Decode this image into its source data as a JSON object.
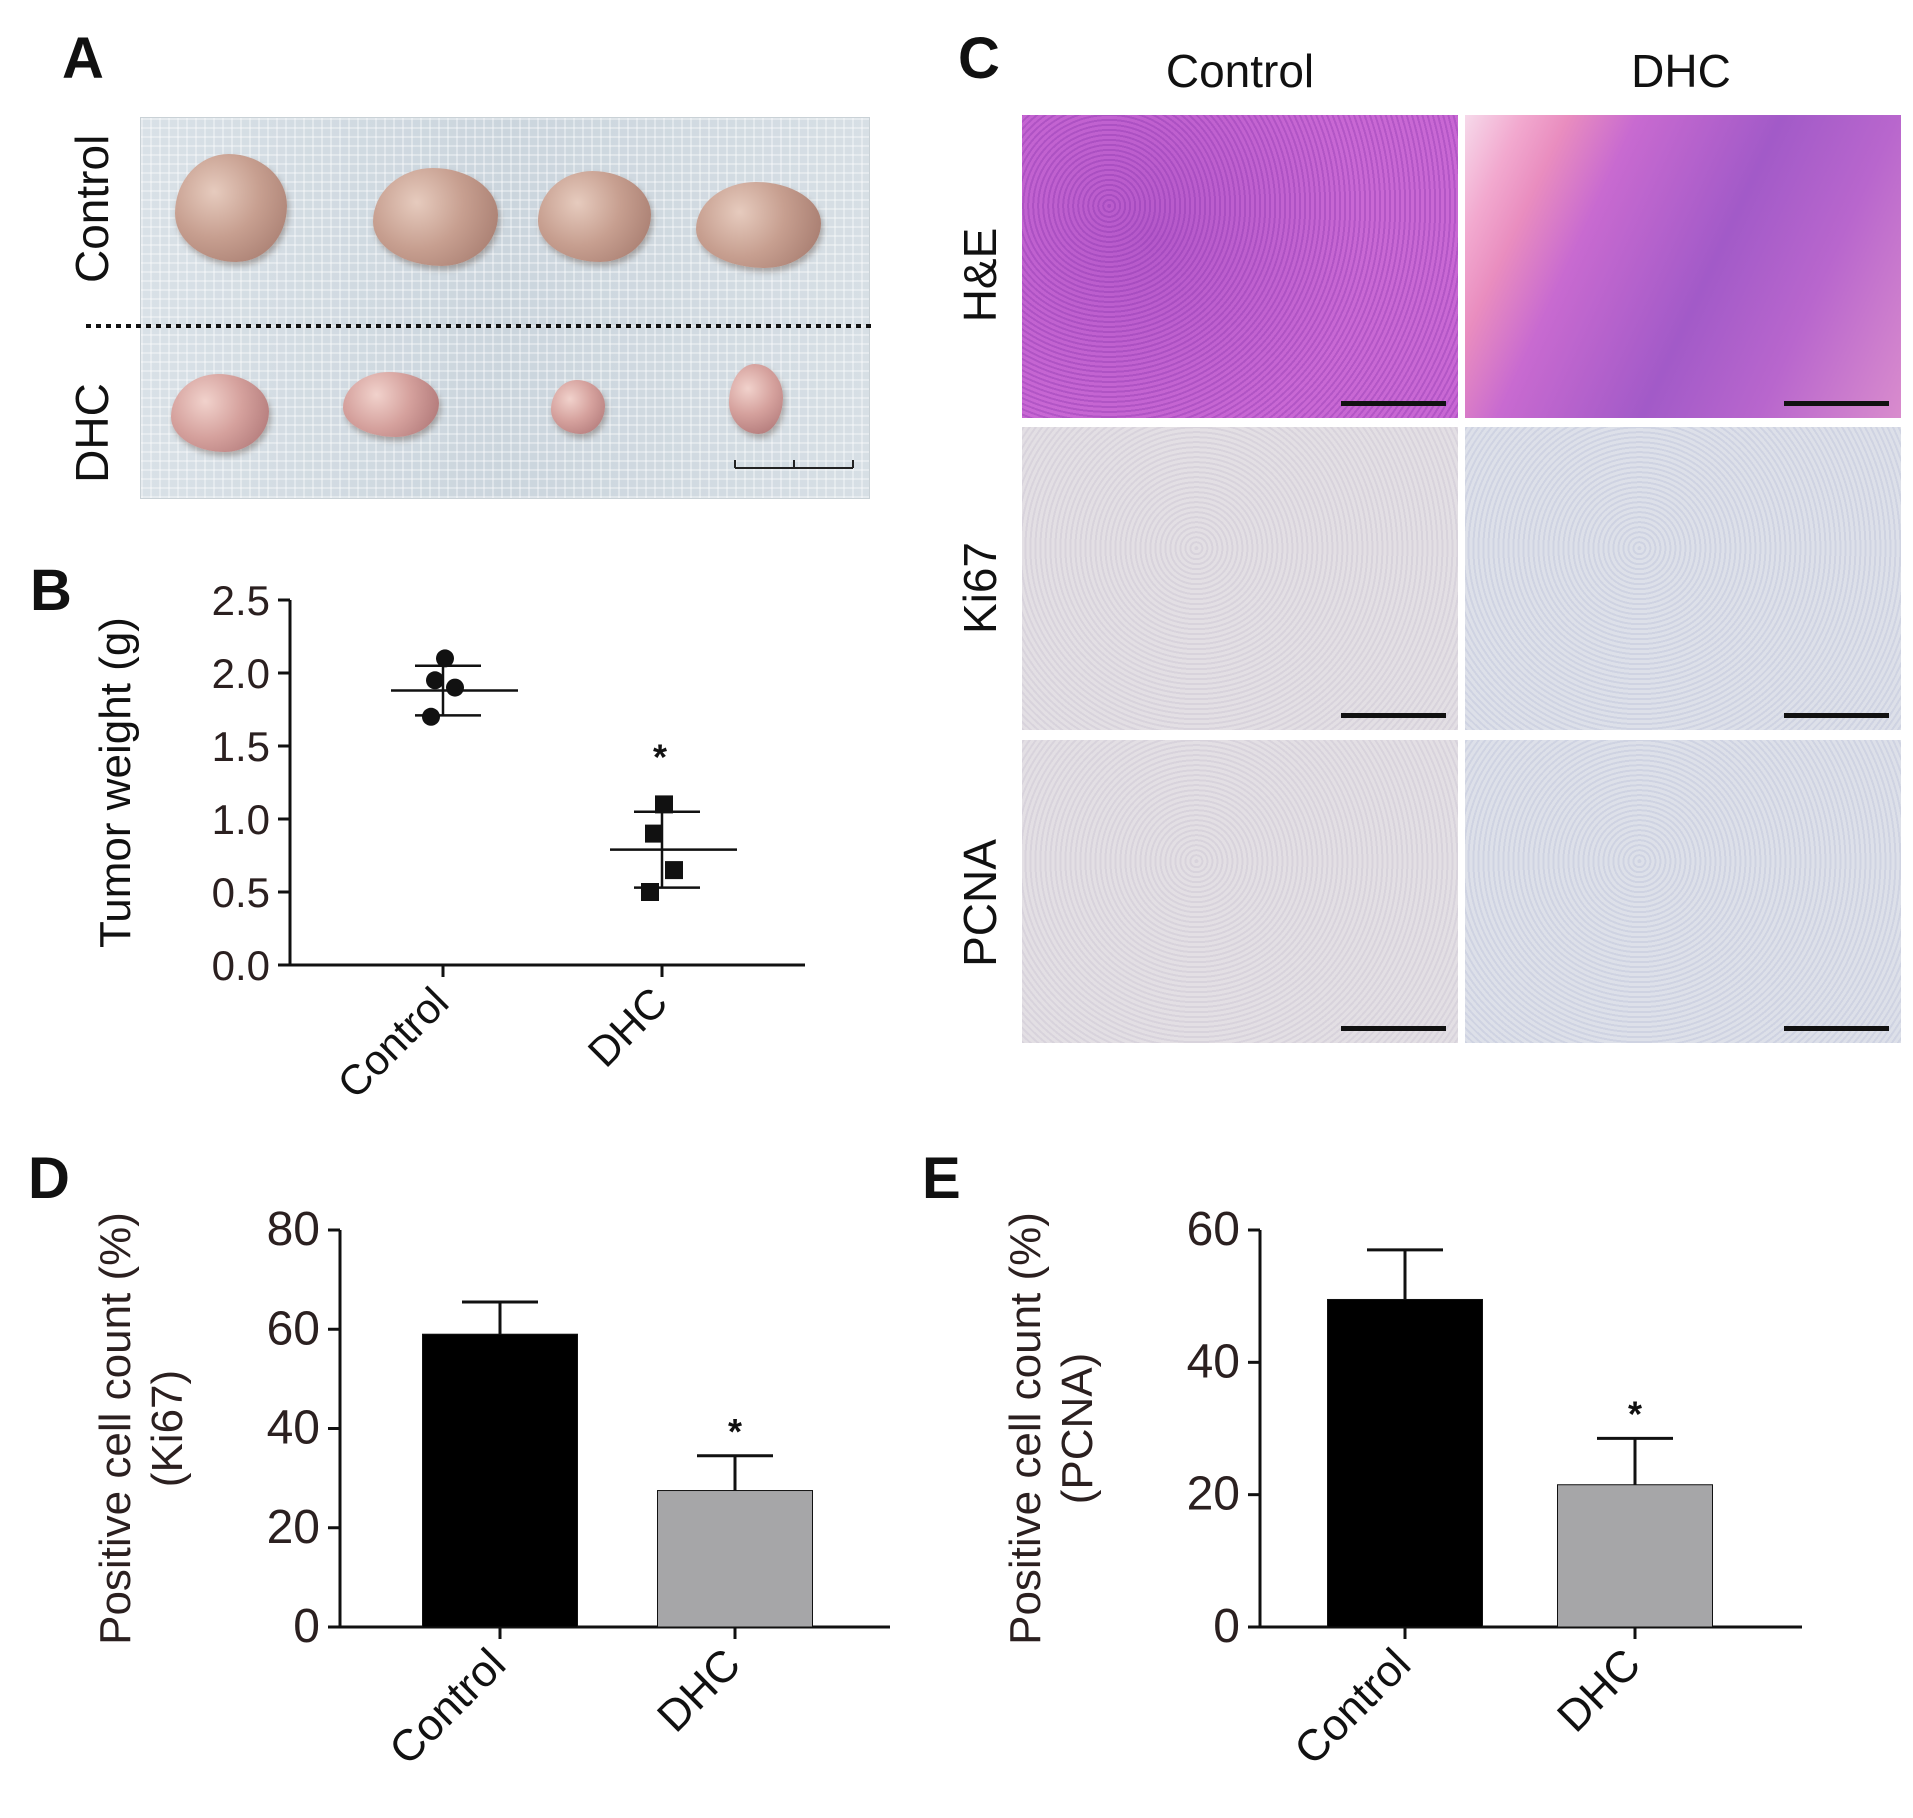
{
  "panels": {
    "a": {
      "letter": "A",
      "row_labels": {
        "control": "Control",
        "dhc": "DHC"
      }
    },
    "b": {
      "letter": "B"
    },
    "c": {
      "letter": "C",
      "col_labels": {
        "control": "Control",
        "dhc": "DHC"
      },
      "row_labels": {
        "he": "H&E",
        "ki67": "Ki67",
        "pcna": "PCNA"
      }
    },
    "d": {
      "letter": "D"
    },
    "e": {
      "letter": "E"
    }
  },
  "chart_data": [
    {
      "id": "B",
      "type": "scatter",
      "categories": [
        "Control",
        "DHC"
      ],
      "ylabel": "Tumor weight (g)",
      "ylim": [
        0,
        2.5
      ],
      "yticks": [
        "0.0",
        "0.5",
        "1.0",
        "1.5",
        "2.0",
        "2.5"
      ],
      "series": [
        {
          "category": "Control",
          "marker": "circle",
          "points": [
            2.1,
            1.95,
            1.9,
            1.7
          ],
          "mean": 1.88,
          "sd": 0.17
        },
        {
          "category": "DHC",
          "marker": "square",
          "points": [
            1.1,
            0.9,
            0.65,
            0.5
          ],
          "mean": 0.79,
          "sd": 0.26
        }
      ],
      "annotations": [
        {
          "category": "DHC",
          "text": "*"
        }
      ]
    },
    {
      "id": "D",
      "type": "bar",
      "categories": [
        "Control",
        "DHC"
      ],
      "values": [
        59,
        27.5
      ],
      "errors": [
        6.5,
        7
      ],
      "colors": [
        "#000000",
        "#a6a6a8"
      ],
      "ylabel_lines": [
        "Positive cell count (%)",
        "(Ki67)"
      ],
      "ylim": [
        0,
        80
      ],
      "yticks": [
        "0",
        "20",
        "40",
        "60",
        "80"
      ],
      "annotations": [
        {
          "category": "DHC",
          "text": "*"
        }
      ]
    },
    {
      "id": "E",
      "type": "bar",
      "categories": [
        "Control",
        "DHC"
      ],
      "values": [
        49.5,
        21.5
      ],
      "errors": [
        7.5,
        7
      ],
      "colors": [
        "#000000",
        "#a6a6a8"
      ],
      "ylabel_lines": [
        "Positive cell count (%)",
        "(PCNA)"
      ],
      "ylim": [
        0,
        60
      ],
      "yticks": [
        "0",
        "20",
        "40",
        "60"
      ],
      "annotations": [
        {
          "category": "DHC",
          "text": "*"
        }
      ]
    }
  ]
}
